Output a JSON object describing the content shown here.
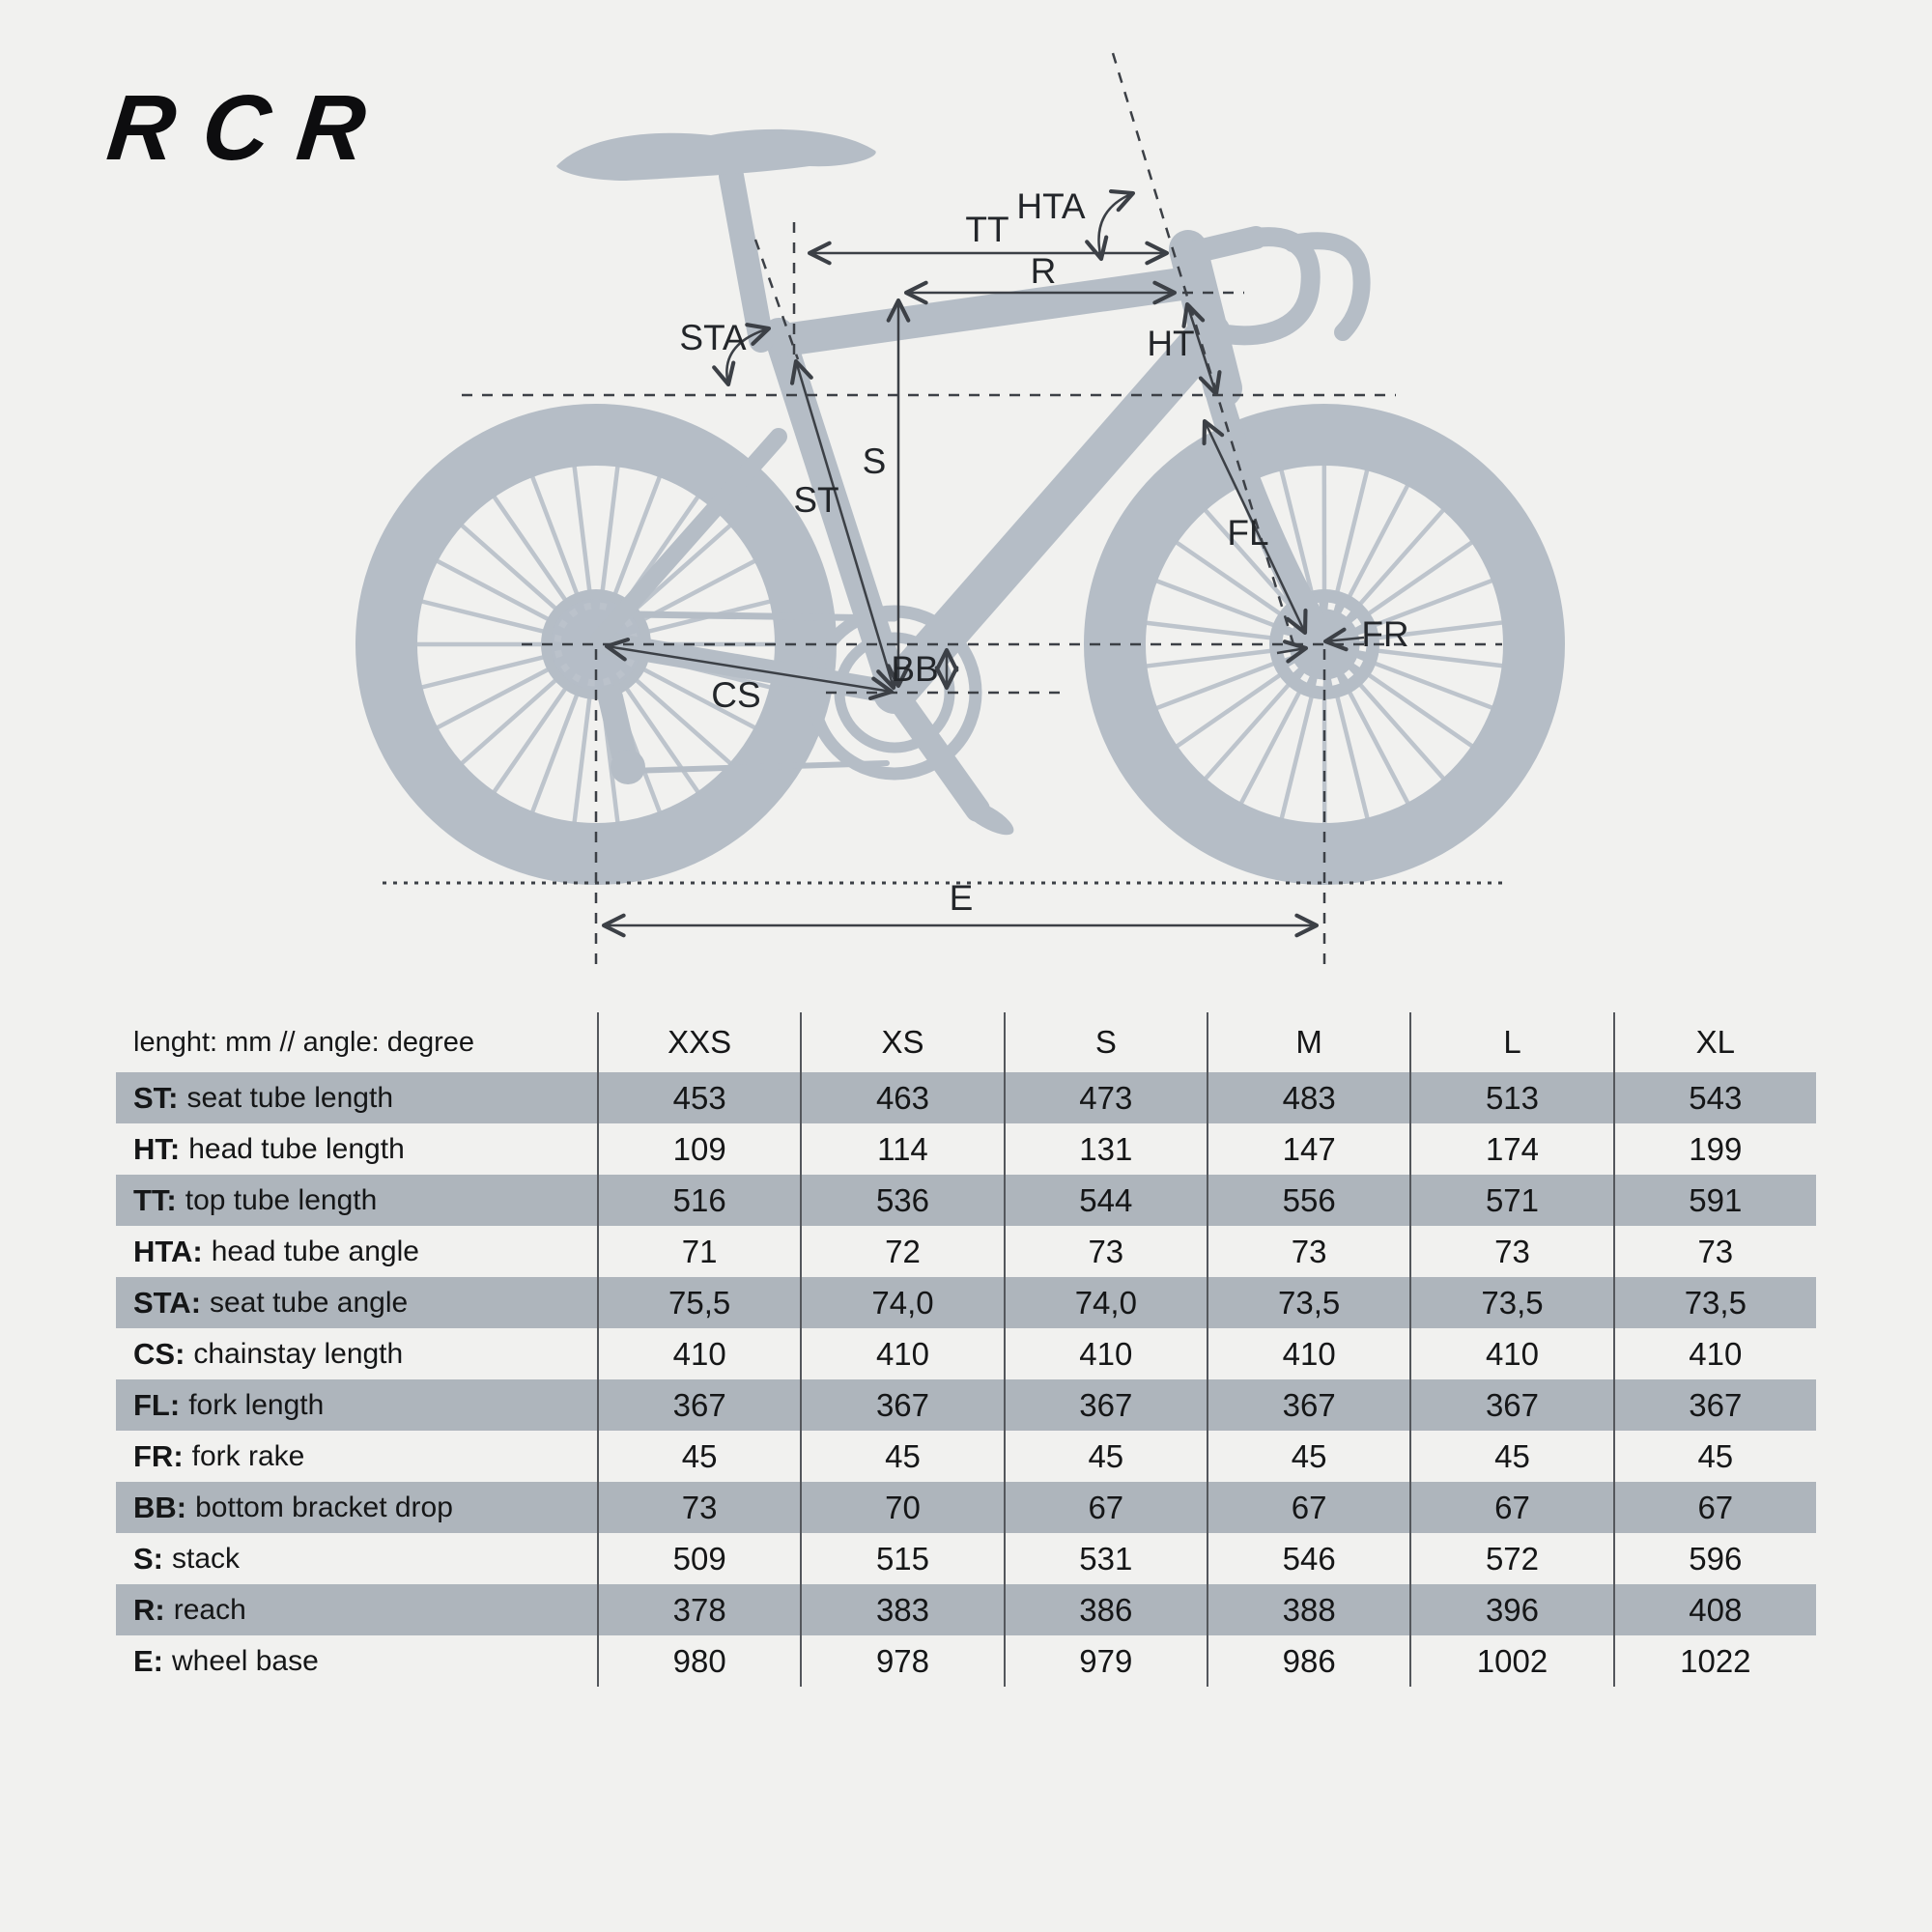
{
  "page": {
    "background": "#f1f1ef",
    "silhouette_color": "#b5bdc6",
    "line_color": "#3c4046",
    "shaded_row_color": "#aeb5bc"
  },
  "logo": {
    "text": "RCR"
  },
  "diagram": {
    "labels": {
      "tt": "TT",
      "r": "R",
      "hta": "HTA",
      "sta": "STA",
      "ht": "HT",
      "s": "S",
      "st": "ST",
      "fl": "FL",
      "fr": "FR",
      "cs": "CS",
      "bb": "BB",
      "e": "E"
    }
  },
  "table": {
    "header_label": "lenght: mm // angle: degree",
    "sizes": [
      "XXS",
      "XS",
      "S",
      "M",
      "L",
      "XL"
    ],
    "rows": [
      {
        "label_prefix": "ST:",
        "label_rest": "seat tube length",
        "shaded": true,
        "values": [
          "453",
          "463",
          "473",
          "483",
          "513",
          "543"
        ]
      },
      {
        "label_prefix": "HT:",
        "label_rest": "head tube length",
        "shaded": false,
        "values": [
          "109",
          "114",
          "131",
          "147",
          "174",
          "199"
        ]
      },
      {
        "label_prefix": "TT:",
        "label_rest": "top tube length",
        "shaded": true,
        "values": [
          "516",
          "536",
          "544",
          "556",
          "571",
          "591"
        ]
      },
      {
        "label_prefix": "HTA:",
        "label_rest": "head tube angle",
        "shaded": false,
        "values": [
          "71",
          "72",
          "73",
          "73",
          "73",
          "73"
        ]
      },
      {
        "label_prefix": "STA:",
        "label_rest": "seat tube angle",
        "shaded": true,
        "values": [
          "75,5",
          "74,0",
          "74,0",
          "73,5",
          "73,5",
          "73,5"
        ]
      },
      {
        "label_prefix": "CS:",
        "label_rest": "chainstay length",
        "shaded": false,
        "values": [
          "410",
          "410",
          "410",
          "410",
          "410",
          "410"
        ]
      },
      {
        "label_prefix": "FL:",
        "label_rest": "fork length",
        "shaded": true,
        "values": [
          "367",
          "367",
          "367",
          "367",
          "367",
          "367"
        ]
      },
      {
        "label_prefix": "FR:",
        "label_rest": "fork rake",
        "shaded": false,
        "values": [
          "45",
          "45",
          "45",
          "45",
          "45",
          "45"
        ]
      },
      {
        "label_prefix": "BB:",
        "label_rest": "bottom bracket drop",
        "shaded": true,
        "values": [
          "73",
          "70",
          "67",
          "67",
          "67",
          "67"
        ]
      },
      {
        "label_prefix": "S:",
        "label_rest": "stack",
        "shaded": false,
        "values": [
          "509",
          "515",
          "531",
          "546",
          "572",
          "596"
        ]
      },
      {
        "label_prefix": "R:",
        "label_rest": "reach",
        "shaded": true,
        "values": [
          "378",
          "383",
          "386",
          "388",
          "396",
          "408"
        ]
      },
      {
        "label_prefix": "E:",
        "label_rest": "wheel base",
        "shaded": false,
        "values": [
          "980",
          "978",
          "979",
          "986",
          "1002",
          "1022"
        ]
      }
    ]
  }
}
